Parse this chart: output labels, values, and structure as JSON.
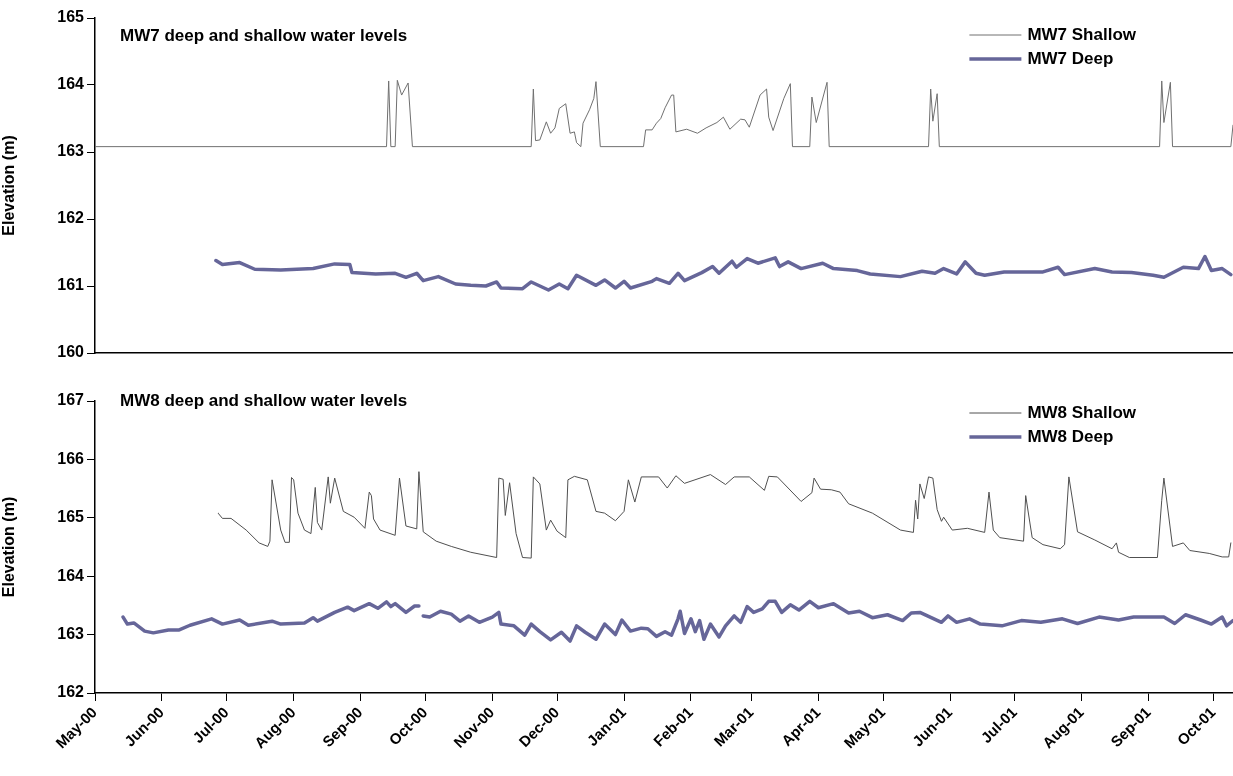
{
  "chart_data": [
    {
      "type": "line",
      "title": "MW7 deep and shallow water levels",
      "ylabel": "Elevation (m)",
      "xlim": [
        "2000-05-01",
        "2001-10-10"
      ],
      "ylim": [
        160,
        165
      ],
      "yticks": [
        160,
        161,
        162,
        163,
        164,
        165
      ],
      "grid": false,
      "legend": "top right",
      "tick_labels": "y",
      "series": [
        {
          "name": "MW7 Shallow",
          "color": "#707070",
          "x": [
            "2000-05-01",
            "2000-09-13",
            "2000-09-14",
            "2000-09-15",
            "2000-09-17",
            "2000-09-18",
            "2000-09-20",
            "2000-09-23",
            "2000-09-25",
            "2000-11-19",
            "2000-11-20",
            "2000-11-21",
            "2000-11-23",
            "2000-11-26",
            "2000-11-28",
            "2000-11-30",
            "2000-12-02",
            "2000-12-05",
            "2000-12-07",
            "2000-12-09",
            "2000-12-10",
            "2000-12-12",
            "2000-12-13",
            "2000-12-16",
            "2000-12-18",
            "2000-12-19",
            "2000-12-21",
            "2001-01-10",
            "2001-01-11",
            "2001-01-14",
            "2001-01-16",
            "2001-01-18",
            "2001-01-20",
            "2001-01-23",
            "2001-01-24",
            "2001-01-25",
            "2001-01-30",
            "2001-02-04",
            "2001-02-08",
            "2001-02-13",
            "2001-02-16",
            "2001-02-19",
            "2001-02-24",
            "2001-02-26",
            "2001-02-28",
            "2001-03-05",
            "2001-03-08",
            "2001-03-09",
            "2001-03-11",
            "2001-03-16",
            "2001-03-19",
            "2001-03-20",
            "2001-03-28",
            "2001-03-29",
            "2001-03-31",
            "2001-04-05",
            "2001-04-06",
            "2001-05-22",
            "2001-05-23",
            "2001-05-24",
            "2001-05-26",
            "2001-05-27",
            "2001-09-06",
            "2001-09-07",
            "2001-09-08",
            "2001-09-11",
            "2001-09-12",
            "2001-10-09",
            "2001-10-10"
          ],
          "values": [
            163.08,
            163.08,
            164.06,
            163.08,
            163.08,
            164.07,
            163.85,
            164.03,
            163.08,
            163.08,
            163.94,
            163.17,
            163.18,
            163.45,
            163.28,
            163.36,
            163.65,
            163.72,
            163.28,
            163.3,
            163.14,
            163.08,
            163.43,
            163.63,
            163.8,
            164.05,
            163.08,
            163.08,
            163.33,
            163.33,
            163.43,
            163.5,
            163.66,
            163.85,
            163.85,
            163.3,
            163.34,
            163.28,
            163.36,
            163.44,
            163.52,
            163.34,
            163.49,
            163.48,
            163.37,
            163.85,
            163.94,
            163.52,
            163.32,
            163.8,
            164.02,
            163.08,
            163.08,
            163.82,
            163.44,
            164.04,
            163.08,
            163.08,
            163.94,
            163.46,
            163.87,
            163.08,
            163.08,
            164.06,
            163.44,
            164.04,
            163.08,
            163.08,
            163.4
          ]
        },
        {
          "name": "MW7 Deep",
          "color": "#666699",
          "x": [
            "2000-06-26",
            "2000-06-29",
            "2000-07-07",
            "2000-07-14",
            "2000-07-26",
            "2000-08-10",
            "2000-08-20",
            "2000-08-27",
            "2000-08-28",
            "2000-09-08",
            "2000-09-17",
            "2000-09-22",
            "2000-09-27",
            "2000-09-30",
            "2000-10-07",
            "2000-10-15",
            "2000-10-22",
            "2000-10-29",
            "2000-11-03",
            "2000-11-05",
            "2000-11-15",
            "2000-11-19",
            "2000-11-27",
            "2000-12-02",
            "2000-12-06",
            "2000-12-10",
            "2000-12-19",
            "2000-12-23",
            "2000-12-28",
            "2001-01-01",
            "2001-01-04",
            "2001-01-14",
            "2001-01-16",
            "2001-01-22",
            "2001-01-26",
            "2001-01-29",
            "2001-02-06",
            "2001-02-11",
            "2001-02-14",
            "2001-02-20",
            "2001-02-22",
            "2001-02-27",
            "2001-03-04",
            "2001-03-12",
            "2001-03-14",
            "2001-03-18",
            "2001-03-24",
            "2001-04-03",
            "2001-04-08",
            "2001-04-19",
            "2001-04-25",
            "2001-05-09",
            "2001-05-19",
            "2001-05-25",
            "2001-05-29",
            "2001-06-04",
            "2001-06-08",
            "2001-06-13",
            "2001-06-17",
            "2001-06-26",
            "2001-07-14",
            "2001-07-21",
            "2001-07-24",
            "2001-08-07",
            "2001-08-15",
            "2001-08-24",
            "2001-09-03",
            "2001-09-08",
            "2001-09-17",
            "2001-09-24",
            "2001-09-27",
            "2001-09-30",
            "2001-10-05",
            "2001-10-09"
          ],
          "values": [
            161.38,
            161.32,
            161.35,
            161.25,
            161.24,
            161.26,
            161.33,
            161.32,
            161.2,
            161.18,
            161.19,
            161.13,
            161.19,
            161.08,
            161.14,
            161.03,
            161.01,
            161.0,
            161.06,
            160.97,
            160.96,
            161.06,
            160.94,
            161.03,
            160.96,
            161.16,
            161.01,
            161.09,
            160.97,
            161.07,
            160.97,
            161.07,
            161.11,
            161.04,
            161.19,
            161.08,
            161.2,
            161.29,
            161.19,
            161.37,
            161.28,
            161.41,
            161.34,
            161.42,
            161.29,
            161.36,
            161.26,
            161.34,
            161.26,
            161.23,
            161.18,
            161.14,
            161.22,
            161.19,
            161.26,
            161.18,
            161.36,
            161.19,
            161.16,
            161.21,
            161.21,
            161.28,
            161.17,
            161.26,
            161.21,
            161.2,
            161.16,
            161.13,
            161.28,
            161.26,
            161.44,
            161.23,
            161.26,
            161.17
          ]
        }
      ]
    },
    {
      "type": "line",
      "title": "MW8 deep and shallow water levels",
      "ylabel": "Elevation (m)",
      "xlim": [
        "2000-05-01",
        "2001-10-10"
      ],
      "xticks": [
        {
          "value": "2000-05-01",
          "label": "May-00"
        },
        {
          "value": "2000-06-01",
          "label": "Jun-00"
        },
        {
          "value": "2000-07-01",
          "label": "Jul-00"
        },
        {
          "value": "2000-08-01",
          "label": "Aug-00"
        },
        {
          "value": "2000-09-01",
          "label": "Sep-00"
        },
        {
          "value": "2000-10-01",
          "label": "Oct-00"
        },
        {
          "value": "2000-11-01",
          "label": "Nov-00"
        },
        {
          "value": "2000-12-01",
          "label": "Dec-00"
        },
        {
          "value": "2001-01-01",
          "label": "Jan-01"
        },
        {
          "value": "2001-02-01",
          "label": "Feb-01"
        },
        {
          "value": "2001-03-01",
          "label": "Mar-01"
        },
        {
          "value": "2001-04-01",
          "label": "Apr-01"
        },
        {
          "value": "2001-05-01",
          "label": "May-01"
        },
        {
          "value": "2001-06-01",
          "label": "Jun-01"
        },
        {
          "value": "2001-07-01",
          "label": "Jul-01"
        },
        {
          "value": "2001-08-01",
          "label": "Aug-01"
        },
        {
          "value": "2001-09-01",
          "label": "Sep-01"
        },
        {
          "value": "2001-10-01",
          "label": "Oct-01"
        }
      ],
      "ylim": [
        162,
        167
      ],
      "yticks": [
        162,
        163,
        164,
        165,
        166,
        167
      ],
      "grid": false,
      "legend": "top right",
      "series": [
        {
          "name": "MW8 Shallow",
          "color": "#505050",
          "x": [
            "2000-06-27",
            "2000-06-29",
            "2000-07-03",
            "2000-07-10",
            "2000-07-16",
            "2000-07-20",
            "2000-07-21",
            "2000-07-22",
            "2000-07-26",
            "2000-07-28",
            "2000-07-30",
            "2000-07-31",
            "2000-08-01",
            "2000-08-03",
            "2000-08-06",
            "2000-08-09",
            "2000-08-11",
            "2000-08-12",
            "2000-08-14",
            "2000-08-17",
            "2000-08-18",
            "2000-08-20",
            "2000-08-24",
            "2000-08-29",
            "2000-09-03",
            "2000-09-05",
            "2000-09-06",
            "2000-09-07",
            "2000-09-10",
            "2000-09-17",
            "2000-09-19",
            "2000-09-22",
            "2000-09-27",
            "2000-09-28",
            "2000-09-30",
            "2000-10-06",
            "2000-10-13",
            "2000-10-22",
            "2000-10-30",
            "2000-11-03",
            "2000-11-04",
            "2000-11-06",
            "2000-11-07",
            "2000-11-09",
            "2000-11-12",
            "2000-11-15",
            "2000-11-19",
            "2000-11-20",
            "2000-11-23",
            "2000-11-26",
            "2000-11-28",
            "2000-12-01",
            "2000-12-05",
            "2000-12-06",
            "2000-12-09",
            "2000-12-15",
            "2000-12-19",
            "2000-12-23",
            "2000-12-28",
            "2001-01-01",
            "2001-01-03",
            "2001-01-06",
            "2001-01-09",
            "2001-01-17",
            "2001-01-21",
            "2001-01-25",
            "2001-01-29",
            "2001-02-10",
            "2001-02-17",
            "2001-02-21",
            "2001-02-28",
            "2001-03-07",
            "2001-03-09",
            "2001-03-13",
            "2001-03-24",
            "2001-03-29",
            "2001-03-30",
            "2001-04-02",
            "2001-04-07",
            "2001-04-11",
            "2001-04-15",
            "2001-04-26",
            "2001-05-09",
            "2001-05-15",
            "2001-05-16",
            "2001-05-17",
            "2001-05-18",
            "2001-05-20",
            "2001-05-22",
            "2001-05-24",
            "2001-05-26",
            "2001-05-28",
            "2001-05-29",
            "2001-06-02",
            "2001-06-09",
            "2001-06-17",
            "2001-06-19",
            "2001-06-21",
            "2001-06-24",
            "2001-07-05",
            "2001-07-06",
            "2001-07-09",
            "2001-07-14",
            "2001-07-22",
            "2001-07-24",
            "2001-07-26",
            "2001-07-30",
            "2001-08-07",
            "2001-08-15",
            "2001-08-17",
            "2001-08-18",
            "2001-08-23",
            "2001-09-05",
            "2001-09-07",
            "2001-09-08",
            "2001-09-12",
            "2001-09-17",
            "2001-09-20",
            "2001-09-29",
            "2001-10-05",
            "2001-10-08",
            "2001-10-09"
          ],
          "values": [
            165.08,
            164.99,
            164.99,
            164.79,
            164.57,
            164.51,
            164.6,
            165.65,
            164.79,
            164.58,
            164.58,
            165.69,
            165.65,
            165.08,
            164.79,
            164.73,
            165.52,
            164.92,
            164.79,
            165.7,
            165.25,
            165.68,
            165.11,
            165.01,
            164.82,
            165.44,
            165.38,
            164.98,
            164.79,
            164.7,
            165.68,
            164.86,
            164.81,
            165.79,
            164.76,
            164.6,
            164.51,
            164.41,
            164.35,
            164.32,
            165.68,
            165.66,
            165.04,
            165.6,
            164.73,
            164.32,
            164.31,
            165.7,
            165.58,
            164.79,
            164.96,
            164.77,
            164.66,
            165.65,
            165.71,
            165.65,
            165.11,
            165.08,
            164.95,
            165.11,
            165.65,
            165.27,
            165.7,
            165.7,
            165.51,
            165.72,
            165.59,
            165.74,
            165.57,
            165.7,
            165.7,
            165.47,
            165.71,
            165.7,
            165.28,
            165.43,
            165.68,
            165.49,
            165.48,
            165.44,
            165.24,
            165.08,
            164.79,
            164.75,
            165.3,
            164.98,
            165.58,
            165.33,
            165.7,
            165.68,
            165.14,
            164.94,
            165.01,
            164.79,
            164.82,
            164.75,
            165.44,
            164.79,
            164.66,
            164.6,
            165.38,
            164.66,
            164.54,
            164.47,
            164.54,
            165.7,
            164.76,
            164.62,
            164.47,
            164.57,
            164.41,
            164.32,
            164.32,
            165.3,
            165.68,
            164.51,
            164.57,
            164.44,
            164.39,
            164.33,
            164.33,
            164.57
          ]
        },
        {
          "name": "MW8 Deep",
          "color": "#666699",
          "x": [
            "2000-05-14",
            "2000-05-16",
            "2000-05-19",
            "2000-05-24",
            "2000-05-28",
            "2000-06-04",
            "2000-06-09",
            "2000-06-14",
            "2000-06-24",
            "2000-06-29",
            "2000-07-07",
            "2000-07-11",
            "2000-07-22",
            "2000-07-26",
            "2000-08-06",
            "2000-08-10",
            "2000-08-12",
            "2000-08-20",
            "2000-08-26",
            "2000-08-29",
            "2000-09-05",
            "2000-09-09",
            "2000-09-13",
            "2000-09-15",
            "2000-09-17",
            "2000-09-22",
            "2000-09-26",
            "2000-09-28",
            "2000-09-29",
            "2000-09-30",
            "2000-10-03",
            "2000-10-08",
            "2000-10-13",
            "2000-10-17",
            "2000-10-21",
            "2000-10-26",
            "2000-11-01",
            "2000-11-04",
            "2000-11-05",
            "2000-11-11",
            "2000-11-16",
            "2000-11-19",
            "2000-11-23",
            "2000-11-28",
            "2000-12-03",
            "2000-12-07",
            "2000-12-10",
            "2000-12-14",
            "2000-12-19",
            "2000-12-23",
            "2000-12-28",
            "2000-12-31",
            "2001-01-04",
            "2001-01-09",
            "2001-01-12",
            "2001-01-16",
            "2001-01-20",
            "2001-01-23",
            "2001-01-26",
            "2001-01-27",
            "2001-01-29",
            "2001-02-01",
            "2001-02-03",
            "2001-02-05",
            "2001-02-07",
            "2001-02-10",
            "2001-02-14",
            "2001-02-17",
            "2001-02-21",
            "2001-02-24",
            "2001-02-27",
            "2001-03-02",
            "2001-03-06",
            "2001-03-09",
            "2001-03-12",
            "2001-03-15",
            "2001-03-19",
            "2001-03-23",
            "2001-03-28",
            "2001-04-01",
            "2001-04-08",
            "2001-04-15",
            "2001-04-20",
            "2001-04-26",
            "2001-05-03",
            "2001-05-10",
            "2001-05-14",
            "2001-05-18",
            "2001-05-28",
            "2001-05-31",
            "2001-06-04",
            "2001-06-10",
            "2001-06-15",
            "2001-06-25",
            "2001-07-04",
            "2001-07-13",
            "2001-07-23",
            "2001-07-30",
            "2001-08-09",
            "2001-08-18",
            "2001-08-25",
            "2001-09-08",
            "2001-09-13",
            "2001-09-18",
            "2001-09-25",
            "2001-09-30",
            "2001-10-05",
            "2001-10-07",
            "2001-10-10"
          ],
          "values": [
            163.3,
            163.18,
            163.2,
            163.06,
            163.03,
            163.08,
            163.08,
            163.16,
            163.27,
            163.18,
            163.25,
            163.16,
            163.23,
            163.18,
            163.2,
            163.29,
            163.23,
            163.38,
            163.47,
            163.41,
            163.53,
            163.45,
            163.56,
            163.48,
            163.53,
            163.38,
            163.49,
            163.49,
            null,
            163.32,
            163.3,
            163.4,
            163.35,
            163.23,
            163.32,
            163.21,
            163.3,
            163.38,
            163.18,
            163.15,
            162.99,
            163.18,
            163.05,
            162.91,
            163.04,
            162.89,
            163.15,
            163.04,
            162.92,
            163.18,
            163.0,
            163.25,
            163.06,
            163.11,
            163.1,
            162.97,
            163.05,
            162.99,
            163.27,
            163.4,
            163.02,
            163.27,
            163.05,
            163.24,
            162.92,
            163.18,
            162.96,
            163.15,
            163.32,
            163.21,
            163.48,
            163.38,
            163.44,
            163.57,
            163.57,
            163.38,
            163.51,
            163.42,
            163.57,
            163.46,
            163.53,
            163.37,
            163.4,
            163.29,
            163.34,
            163.24,
            163.37,
            163.38,
            163.21,
            163.32,
            163.21,
            163.27,
            163.18,
            163.15,
            163.24,
            163.21,
            163.27,
            163.19,
            163.3,
            163.25,
            163.3,
            163.3,
            163.19,
            163.34,
            163.25,
            163.18,
            163.3,
            163.15,
            163.24
          ]
        }
      ]
    }
  ]
}
